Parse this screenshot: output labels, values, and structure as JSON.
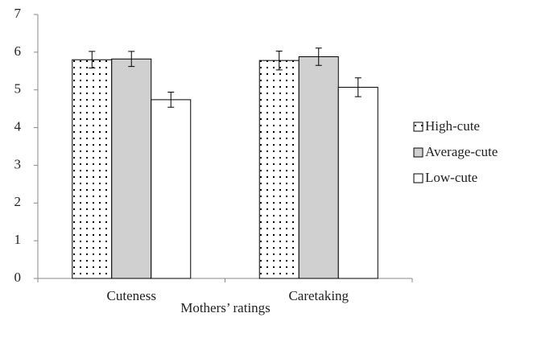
{
  "chart_data": {
    "type": "bar",
    "x_label": "Mothers’ ratings",
    "categories": [
      "Cuteness",
      "Caretaking"
    ],
    "series": [
      {
        "name": "High-cute",
        "color": "#ffffff",
        "pattern": "dots",
        "values": [
          5.8,
          5.78
        ],
        "errors": [
          0.22,
          0.25
        ]
      },
      {
        "name": "Average-cute",
        "color": "#d0d0d0",
        "values": [
          5.82,
          5.88
        ],
        "errors": [
          0.2,
          0.23
        ]
      },
      {
        "name": "Low-cute",
        "color": "#ffffff",
        "values": [
          4.74,
          5.07
        ],
        "errors": [
          0.2,
          0.25
        ]
      }
    ],
    "ylim": [
      0,
      7
    ],
    "yticks": [
      0,
      1,
      2,
      3,
      4,
      5,
      6,
      7
    ],
    "grid": false,
    "legend": "right"
  }
}
